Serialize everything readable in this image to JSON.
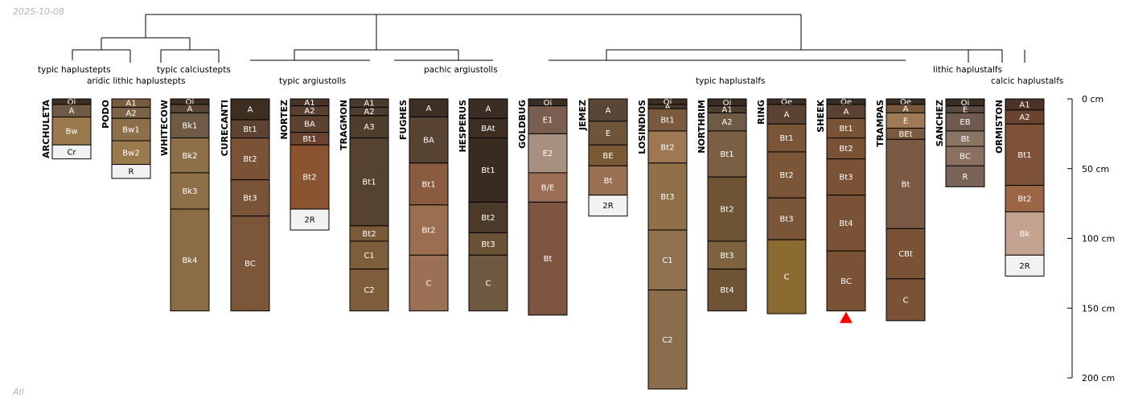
{
  "date": "2025-10-08",
  "footer": "All",
  "depth_axis": {
    "ticks": [
      {
        "depth": 0,
        "label": "0 cm"
      },
      {
        "depth": 50,
        "label": "50 cm"
      },
      {
        "depth": 100,
        "label": "100 cm"
      },
      {
        "depth": 150,
        "label": "150 cm"
      },
      {
        "depth": 200,
        "label": "200 cm"
      }
    ]
  },
  "colors": {
    "line": "#000000",
    "label": "#000000",
    "hz_text_light": "#ffffff",
    "hz_text_dark": "#000000",
    "marker": "#ff0000"
  },
  "group_labels": [
    {
      "id": "g-typic-haplustepts",
      "text": "typic haplustepts"
    },
    {
      "id": "g-aridic-lithic-haplustepts",
      "text": "aridic lithic haplustepts"
    },
    {
      "id": "g-typic-calciustepts",
      "text": "typic calciustepts"
    },
    {
      "id": "g-typic-argiustolls",
      "text": "typic argiustolls"
    },
    {
      "id": "g-pachic-argiustolls",
      "text": "pachic argiustolls"
    },
    {
      "id": "g-typic-haplustalfs",
      "text": "typic haplustalfs"
    },
    {
      "id": "g-lithic-haplustalfs",
      "text": "lithic haplustalfs"
    },
    {
      "id": "g-calcic-haplustalfs",
      "text": "calcic haplustalfs"
    }
  ],
  "profiles": [
    {
      "name": "ARCHULETA",
      "horizons": [
        {
          "name": "Oi",
          "top": 0,
          "bottom": 4,
          "color": "#3d2f22"
        },
        {
          "name": "A",
          "top": 4,
          "bottom": 13,
          "color": "#6e5a45"
        },
        {
          "name": "Bw",
          "top": 13,
          "bottom": 33,
          "color": "#9a7a4c"
        },
        {
          "name": "Cr",
          "top": 33,
          "bottom": 43,
          "color": "#f2f2f2"
        }
      ]
    },
    {
      "name": "PODO",
      "horizons": [
        {
          "name": "A1",
          "top": 0,
          "bottom": 6,
          "color": "#7a5c3e"
        },
        {
          "name": "A2",
          "top": 6,
          "bottom": 14,
          "color": "#7d6248"
        },
        {
          "name": "Bw1",
          "top": 14,
          "bottom": 30,
          "color": "#8e6f4b"
        },
        {
          "name": "Bw2",
          "top": 30,
          "bottom": 47,
          "color": "#9a7a4c"
        },
        {
          "name": "R",
          "top": 47,
          "bottom": 57,
          "color": "#f2f2f2"
        }
      ]
    },
    {
      "name": "WHITECOW",
      "horizons": [
        {
          "name": "Oi",
          "top": 0,
          "bottom": 4,
          "color": "#3d2f22"
        },
        {
          "name": "A",
          "top": 4,
          "bottom": 10,
          "color": "#5a4636"
        },
        {
          "name": "Bk1",
          "top": 10,
          "bottom": 28,
          "color": "#6e5a45"
        },
        {
          "name": "Bk2",
          "top": 28,
          "bottom": 53,
          "color": "#8e7048"
        },
        {
          "name": "Bk3",
          "top": 53,
          "bottom": 79,
          "color": "#8d6f48"
        },
        {
          "name": "Bk4",
          "top": 79,
          "bottom": 152,
          "color": "#8a6d47"
        }
      ]
    },
    {
      "name": "CURECANTI",
      "horizons": [
        {
          "name": "A",
          "top": 0,
          "bottom": 15,
          "color": "#3e2e22"
        },
        {
          "name": "Bt1",
          "top": 15,
          "bottom": 28,
          "color": "#5e4331"
        },
        {
          "name": "Bt2",
          "top": 28,
          "bottom": 58,
          "color": "#7a5337"
        },
        {
          "name": "Bt3",
          "top": 58,
          "bottom": 84,
          "color": "#7a5438"
        },
        {
          "name": "BC",
          "top": 84,
          "bottom": 152,
          "color": "#7b5639"
        }
      ]
    },
    {
      "name": "NORTEZ",
      "horizons": [
        {
          "name": "A1",
          "top": 0,
          "bottom": 5,
          "color": "#4a3427"
        },
        {
          "name": "A2",
          "top": 5,
          "bottom": 12,
          "color": "#5b4032"
        },
        {
          "name": "BA",
          "top": 12,
          "bottom": 24,
          "color": "#5e4231"
        },
        {
          "name": "Bt1",
          "top": 24,
          "bottom": 33,
          "color": "#6a4430"
        },
        {
          "name": "Bt2",
          "top": 33,
          "bottom": 79,
          "color": "#8b5431"
        },
        {
          "name": "2R",
          "top": 79,
          "bottom": 94,
          "color": "#f2f2f2"
        }
      ]
    },
    {
      "name": "TRAGMON",
      "horizons": [
        {
          "name": "A1",
          "top": 0,
          "bottom": 6,
          "color": "#4a3a2a"
        },
        {
          "name": "A2",
          "top": 6,
          "bottom": 12,
          "color": "#4e3d2c"
        },
        {
          "name": "A3",
          "top": 12,
          "bottom": 28,
          "color": "#503e2d"
        },
        {
          "name": "Bt1",
          "top": 28,
          "bottom": 91,
          "color": "#56432f"
        },
        {
          "name": "Bt2",
          "top": 91,
          "bottom": 102,
          "color": "#7a5a38"
        },
        {
          "name": "C1",
          "top": 102,
          "bottom": 122,
          "color": "#7d5e3b"
        },
        {
          "name": "C2",
          "top": 122,
          "bottom": 152,
          "color": "#7f5e3c"
        }
      ]
    },
    {
      "name": "FUGHES",
      "horizons": [
        {
          "name": "A",
          "top": 0,
          "bottom": 13,
          "color": "#3e2f24"
        },
        {
          "name": "BA",
          "top": 13,
          "bottom": 46,
          "color": "#574433"
        },
        {
          "name": "Bt1",
          "top": 46,
          "bottom": 76,
          "color": "#8b5b40"
        },
        {
          "name": "Bt2",
          "top": 76,
          "bottom": 112,
          "color": "#9b6e51"
        },
        {
          "name": "C",
          "top": 112,
          "bottom": 152,
          "color": "#9c7055"
        }
      ]
    },
    {
      "name": "HESPERUS",
      "horizons": [
        {
          "name": "A",
          "top": 0,
          "bottom": 14,
          "color": "#3a2d24"
        },
        {
          "name": "BAt",
          "top": 14,
          "bottom": 28,
          "color": "#3d2e22"
        },
        {
          "name": "Bt1",
          "top": 28,
          "bottom": 74,
          "color": "#3a2b20"
        },
        {
          "name": "Bt2",
          "top": 74,
          "bottom": 96,
          "color": "#4b3929"
        },
        {
          "name": "Bt3",
          "top": 96,
          "bottom": 112,
          "color": "#6a5236"
        },
        {
          "name": "C",
          "top": 112,
          "bottom": 152,
          "color": "#6e5840"
        }
      ]
    },
    {
      "name": "GOLDBUG",
      "horizons": [
        {
          "name": "Oi",
          "top": 0,
          "bottom": 5,
          "color": "#3a2d24"
        },
        {
          "name": "E1",
          "top": 5,
          "bottom": 25,
          "color": "#7a5e50"
        },
        {
          "name": "E2",
          "top": 25,
          "bottom": 53,
          "color": "#a89080"
        },
        {
          "name": "B/E",
          "top": 53,
          "bottom": 74,
          "color": "#9b6e55"
        },
        {
          "name": "Bt",
          "top": 74,
          "bottom": 155,
          "color": "#7d5540"
        }
      ]
    },
    {
      "name": "JEMEZ",
      "horizons": [
        {
          "name": "A",
          "top": 0,
          "bottom": 16,
          "color": "#5a4636"
        },
        {
          "name": "E",
          "top": 16,
          "bottom": 33,
          "color": "#6e5438"
        },
        {
          "name": "BE",
          "top": 33,
          "bottom": 48,
          "color": "#7a5a35"
        },
        {
          "name": "Bt",
          "top": 48,
          "bottom": 69,
          "color": "#9a7053"
        },
        {
          "name": "2R",
          "top": 69,
          "bottom": 84,
          "color": "#f2f2f2"
        }
      ]
    },
    {
      "name": "LOSINDIOS",
      "horizons": [
        {
          "name": "Oi",
          "top": 0,
          "bottom": 4,
          "color": "#3d2f22"
        },
        {
          "name": "A",
          "top": 4,
          "bottom": 7,
          "color": "#4a3a2a"
        },
        {
          "name": "Bt1",
          "top": 7,
          "bottom": 23,
          "color": "#7a5a3e"
        },
        {
          "name": "Bt2",
          "top": 23,
          "bottom": 46,
          "color": "#9e7853"
        },
        {
          "name": "Bt3",
          "top": 46,
          "bottom": 94,
          "color": "#8f7048"
        },
        {
          "name": "C1",
          "top": 94,
          "bottom": 137,
          "color": "#917250"
        },
        {
          "name": "C2",
          "top": 137,
          "bottom": 208,
          "color": "#8a6d4d"
        }
      ]
    },
    {
      "name": "NORTHRIM",
      "horizons": [
        {
          "name": "Oi",
          "top": 0,
          "bottom": 5,
          "color": "#3a2d24"
        },
        {
          "name": "A1",
          "top": 5,
          "bottom": 10,
          "color": "#4e3c2c"
        },
        {
          "name": "A2",
          "top": 10,
          "bottom": 23,
          "color": "#6e5a45"
        },
        {
          "name": "Bt1",
          "top": 23,
          "bottom": 56,
          "color": "#7a5f44"
        },
        {
          "name": "Bt2",
          "top": 56,
          "bottom": 102,
          "color": "#6e5434"
        },
        {
          "name": "Bt3",
          "top": 102,
          "bottom": 122,
          "color": "#7d6340"
        },
        {
          "name": "Bt4",
          "top": 122,
          "bottom": 152,
          "color": "#6e5434"
        }
      ]
    },
    {
      "name": "RING",
      "horizons": [
        {
          "name": "Oe",
          "top": 0,
          "bottom": 4,
          "color": "#3a2d24"
        },
        {
          "name": "A",
          "top": 4,
          "bottom": 18,
          "color": "#5a4333"
        },
        {
          "name": "Bt1",
          "top": 18,
          "bottom": 38,
          "color": "#7a5538"
        },
        {
          "name": "Bt2",
          "top": 38,
          "bottom": 71,
          "color": "#7a5538"
        },
        {
          "name": "Bt3",
          "top": 71,
          "bottom": 101,
          "color": "#7a5538"
        },
        {
          "name": "C",
          "top": 101,
          "bottom": 154,
          "color": "#8a6a30"
        }
      ]
    },
    {
      "name": "SHEEK",
      "horizons": [
        {
          "name": "Oe",
          "top": 0,
          "bottom": 4,
          "color": "#3a2d24"
        },
        {
          "name": "A",
          "top": 4,
          "bottom": 14,
          "color": "#5a4333"
        },
        {
          "name": "Bt1",
          "top": 14,
          "bottom": 28,
          "color": "#7a5236"
        },
        {
          "name": "Bt2",
          "top": 28,
          "bottom": 43,
          "color": "#7a5236"
        },
        {
          "name": "Bt3",
          "top": 43,
          "bottom": 69,
          "color": "#7a5236"
        },
        {
          "name": "Bt4",
          "top": 69,
          "bottom": 109,
          "color": "#7a5236"
        },
        {
          "name": "BC",
          "top": 109,
          "bottom": 152,
          "color": "#7a5236"
        }
      ]
    },
    {
      "name": "TRAMPAS",
      "horizons": [
        {
          "name": "Oe",
          "top": 0,
          "bottom": 4,
          "color": "#3a2d24"
        },
        {
          "name": "A",
          "top": 4,
          "bottom": 10,
          "color": "#7a5a3e"
        },
        {
          "name": "E",
          "top": 10,
          "bottom": 21,
          "color": "#a07a56"
        },
        {
          "name": "BEt",
          "top": 21,
          "bottom": 29,
          "color": "#7a5a3e"
        },
        {
          "name": "Bt",
          "top": 29,
          "bottom": 93,
          "color": "#7a5a45"
        },
        {
          "name": "CBt",
          "top": 93,
          "bottom": 129,
          "color": "#7a5236"
        },
        {
          "name": "C",
          "top": 129,
          "bottom": 159,
          "color": "#7a5236"
        }
      ]
    },
    {
      "name": "SANCHEZ",
      "horizons": [
        {
          "name": "Oi",
          "top": 0,
          "bottom": 5,
          "color": "#3a2d24"
        },
        {
          "name": "E",
          "top": 5,
          "bottom": 10,
          "color": "#5a4a3e"
        },
        {
          "name": "EB",
          "top": 10,
          "bottom": 23,
          "color": "#6e5a4e"
        },
        {
          "name": "Bt",
          "top": 23,
          "bottom": 34,
          "color": "#8a7565"
        },
        {
          "name": "BC",
          "top": 34,
          "bottom": 48,
          "color": "#8a7060"
        },
        {
          "name": "R",
          "top": 48,
          "bottom": 63,
          "color": "#7a6458"
        }
      ]
    },
    {
      "name": "ORMISTON",
      "horizons": [
        {
          "name": "A1",
          "top": 0,
          "bottom": 8,
          "color": "#4a3427"
        },
        {
          "name": "A2",
          "top": 8,
          "bottom": 18,
          "color": "#6a4430"
        },
        {
          "name": "Bt1",
          "top": 18,
          "bottom": 62,
          "color": "#7d5238"
        },
        {
          "name": "Bt2",
          "top": 62,
          "bottom": 81,
          "color": "#9b6645"
        },
        {
          "name": "Bk",
          "top": 81,
          "bottom": 112,
          "color": "#c4a290"
        },
        {
          "name": "2R",
          "top": 112,
          "bottom": 127,
          "color": "#f2f2f2"
        }
      ]
    }
  ]
}
